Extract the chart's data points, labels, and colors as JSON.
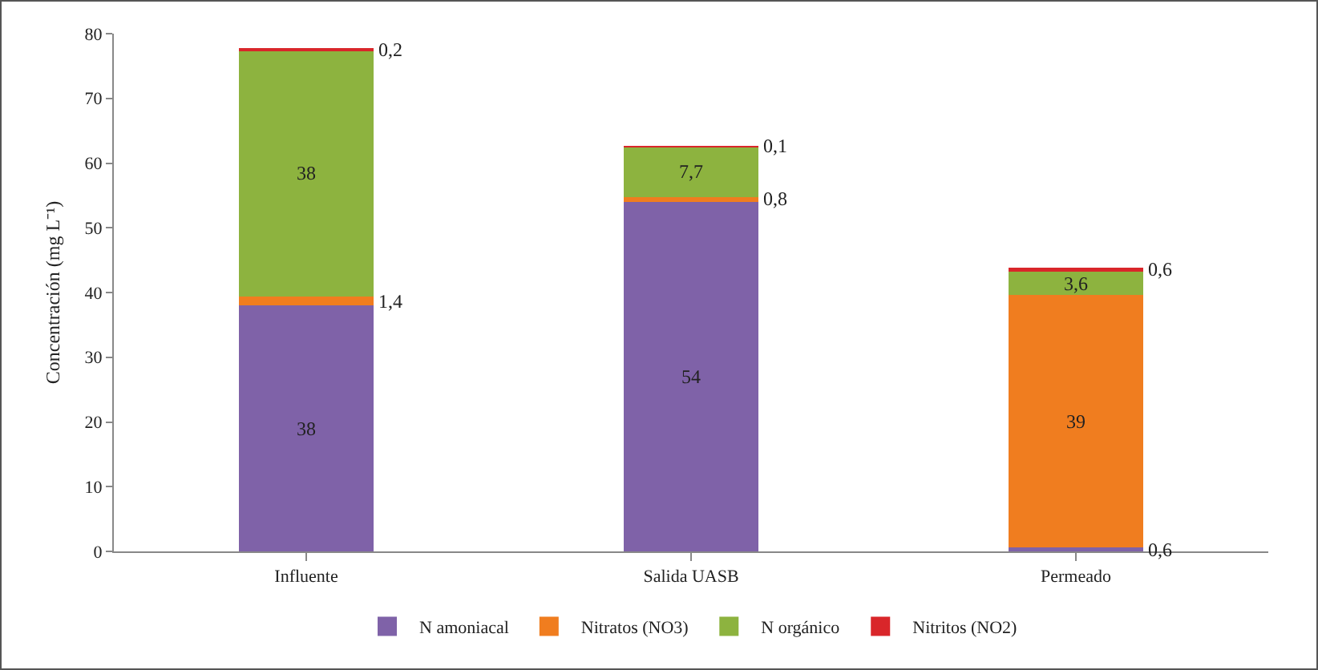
{
  "chart_data": {
    "type": "bar",
    "stacked": true,
    "ylabel": "Concentración (mg L⁻¹)",
    "categories": [
      "Influente",
      "Salida UASB",
      "Permeado"
    ],
    "series": [
      {
        "name": "N amoniacal",
        "color": "#7f62a8",
        "values": [
          38,
          54,
          0.6
        ],
        "value_labels": [
          "38",
          "54",
          "0,6"
        ]
      },
      {
        "name": "Nitratos (NO3)",
        "color": "#f07d1f",
        "values": [
          1.4,
          0.8,
          39
        ],
        "value_labels": [
          "1,4",
          "0,8",
          "39"
        ]
      },
      {
        "name": "N orgánico",
        "color": "#8db33f",
        "values": [
          38,
          7.7,
          3.6
        ],
        "value_labels": [
          "38",
          "7,7",
          "3,6"
        ]
      },
      {
        "name": "Nitritos (NO2)",
        "color": "#d9262a",
        "values": [
          0.2,
          0.1,
          0.6
        ],
        "value_labels": [
          "0,2",
          "0,1",
          "0,6"
        ]
      }
    ],
    "ylim": [
      0,
      80
    ],
    "yticks": [
      0,
      10,
      20,
      30,
      40,
      50,
      60,
      70,
      80
    ],
    "grid": false,
    "legend": "bottom"
  }
}
